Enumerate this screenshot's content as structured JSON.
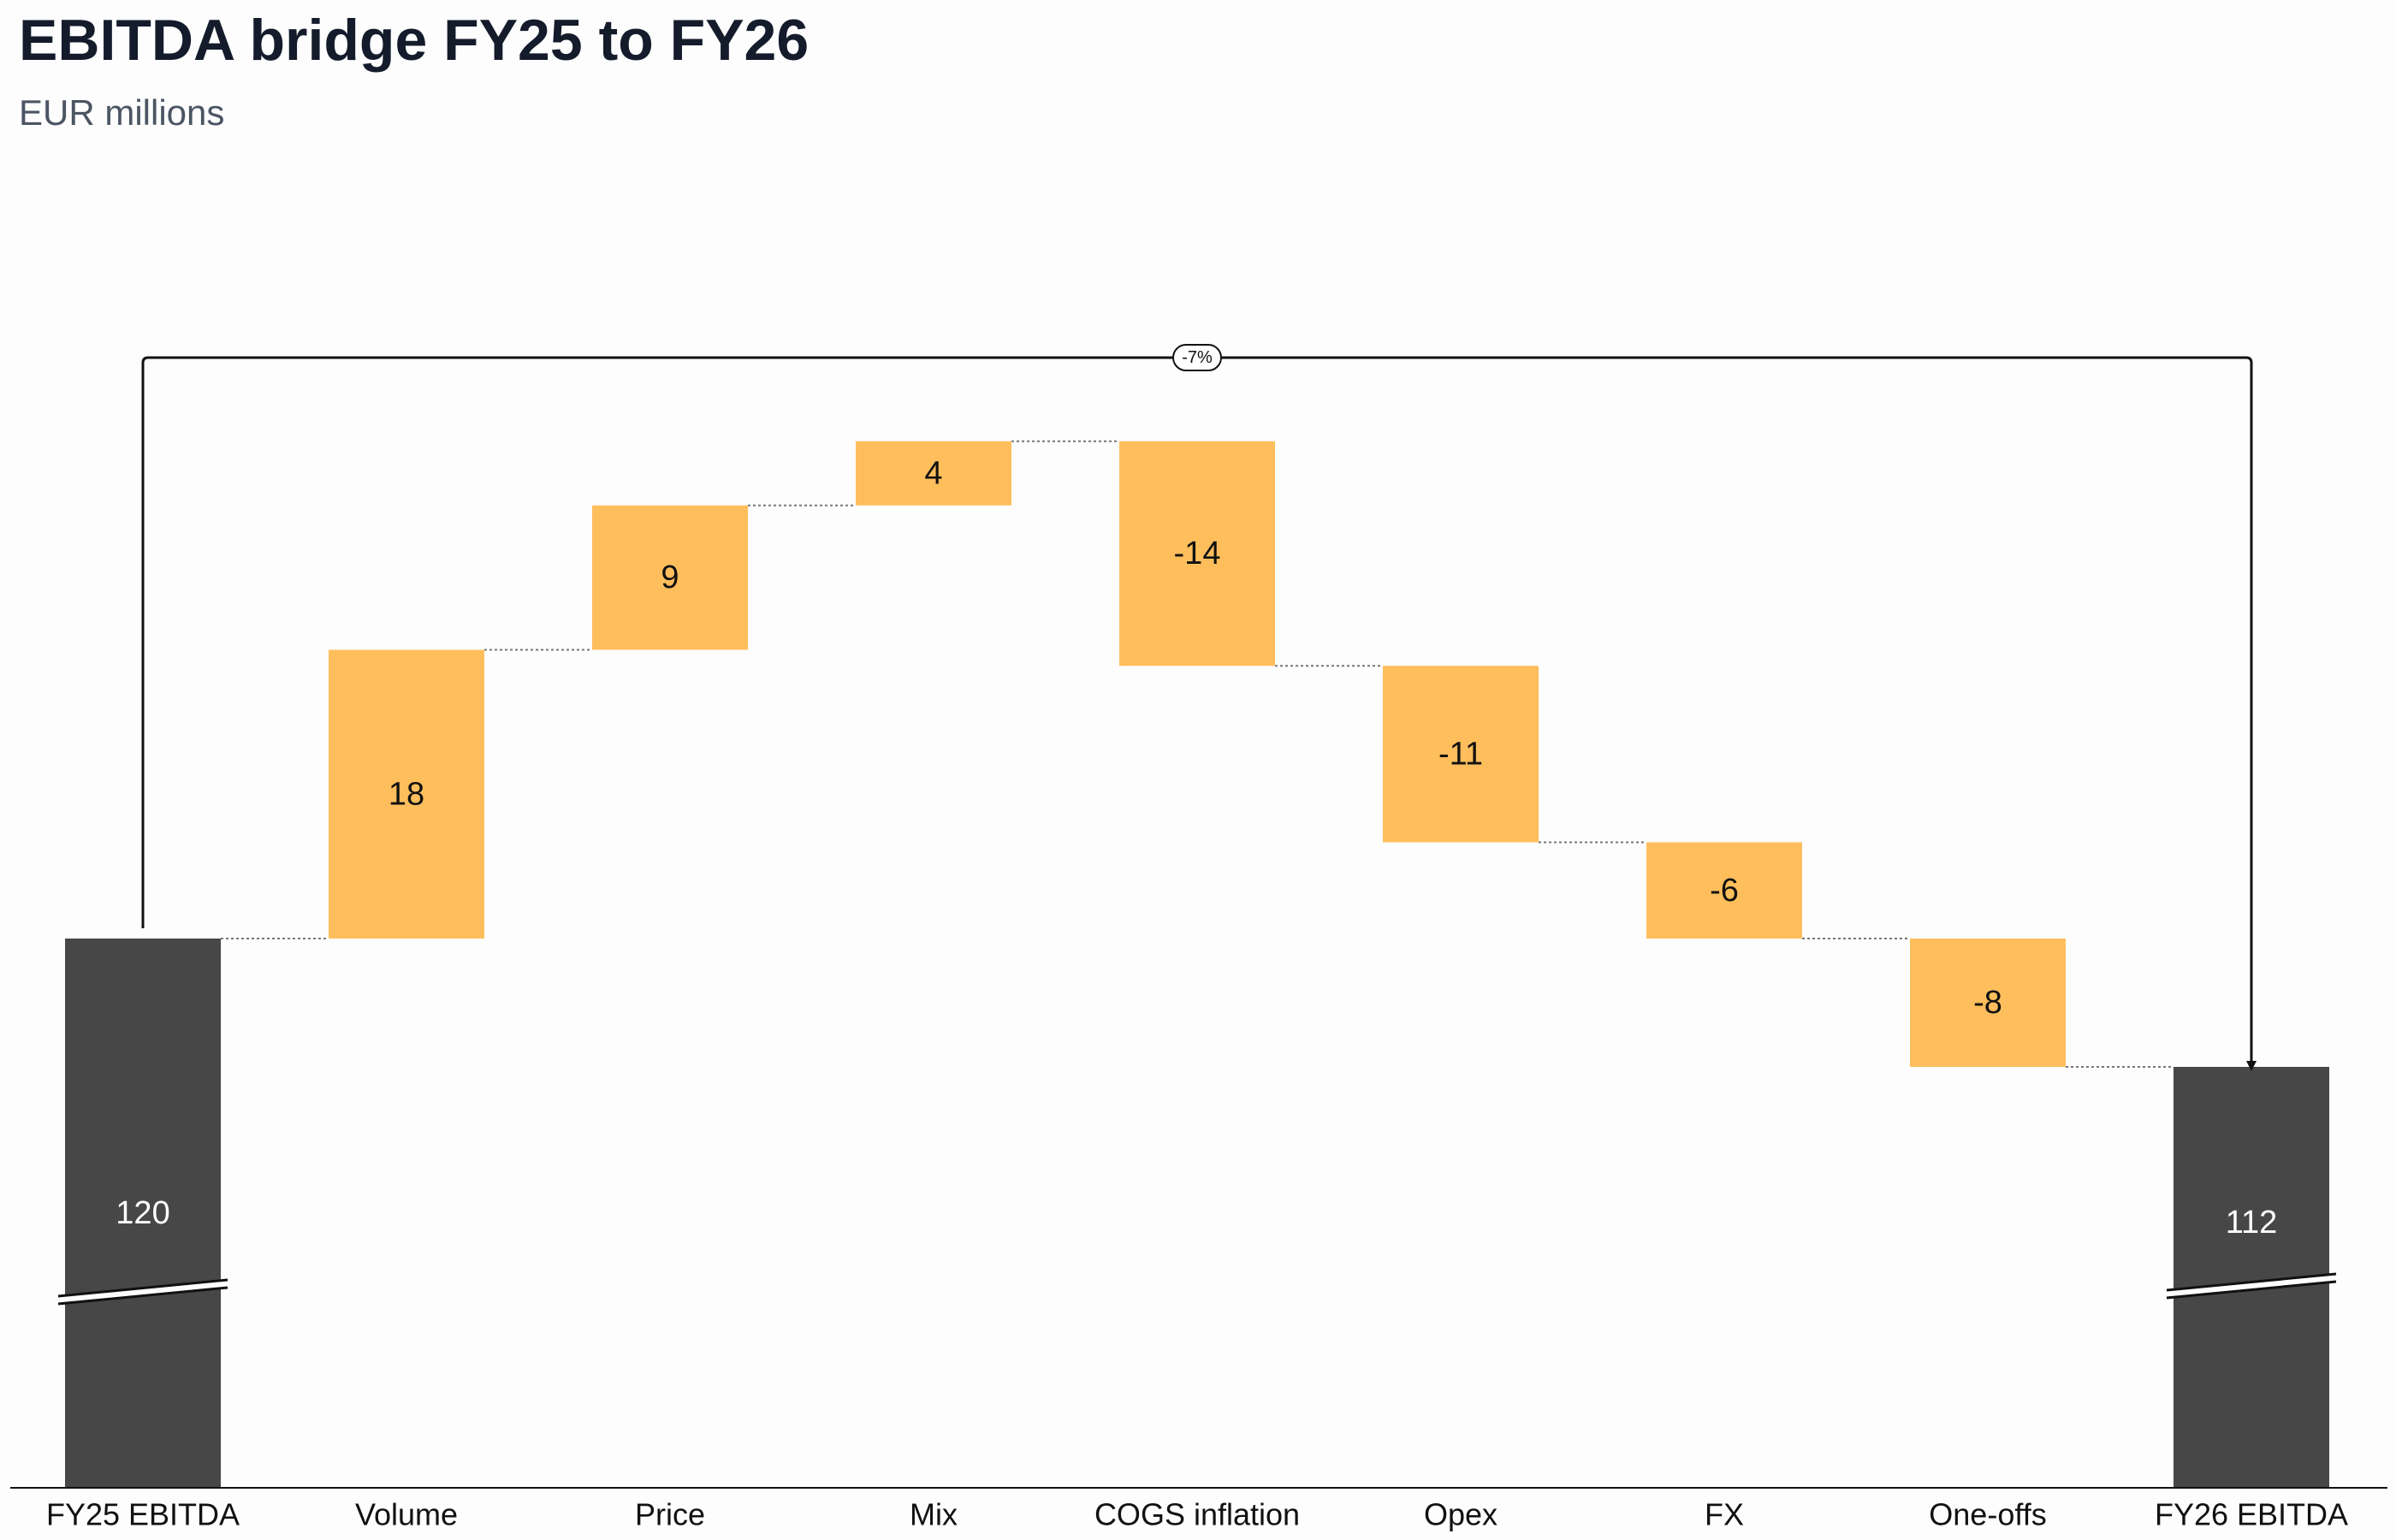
{
  "chart_data": {
    "type": "waterfall",
    "title": "EBITDA bridge FY25 to FY26",
    "subtitle": "EUR millions",
    "categories": [
      "FY25 EBITDA",
      "Volume",
      "Price",
      "Mix",
      "COGS inflation",
      "Opex",
      "FX",
      "One-offs",
      "FY26 EBITDA"
    ],
    "values": [
      120,
      18,
      9,
      4,
      -14,
      -11,
      -6,
      -8,
      112
    ],
    "value_labels": [
      "120",
      "18",
      "9",
      "4",
      "-14",
      "-11",
      "-6",
      "-8",
      "112"
    ],
    "kinds": [
      "total",
      "delta",
      "delta",
      "delta",
      "delta",
      "delta",
      "delta",
      "delta",
      "total"
    ],
    "axis_break": true,
    "difference_annotation": {
      "from": "FY25 EBITDA",
      "to": "FY26 EBITDA",
      "label": "-7%"
    },
    "colors": {
      "total": "#474747",
      "delta": "#ffbe5c",
      "total_label": "#ffffff",
      "delta_label": "#111111",
      "connector": "#777777",
      "axis": "#111111"
    },
    "grid": false,
    "legend": "none"
  }
}
